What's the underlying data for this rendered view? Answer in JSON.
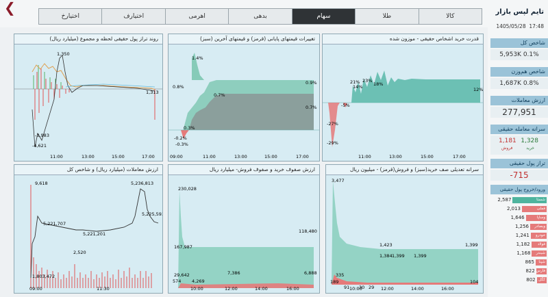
{
  "tabs": [
    "کالا",
    "طلا",
    "سهام",
    "بدهی",
    "اهرمی",
    "اختیارف",
    "اختیارخ"
  ],
  "active_tab": "سهام",
  "brand": {
    "name": "تایم لپس بازار",
    "date": "1405/05/28",
    "time": "17:48"
  },
  "sidebar": {
    "total_index_label": "شاخص کل",
    "total_index_value": "5,953K 0.1%",
    "eq_index_label": "شاخص هم‌وزن",
    "eq_index_value": "1,687K 0.8%",
    "trade_value_label": "ارزش معاملات",
    "trade_value": "277,951",
    "per_capita_label": "سرانه معامله حقیقی",
    "buy_value": "1,328",
    "buy_label": "خرید",
    "sell_value": "1,181",
    "sell_label": "فروش",
    "money_balance_label": "تراز پول حقیقی",
    "money_balance_value": "-715",
    "flow_label": "ورود/خروج پول حقیقی",
    "flows": [
      {
        "name": "شستا",
        "value": "2,587",
        "pos": true,
        "frac": 0.62
      },
      {
        "name": "فملی",
        "value": "2,013",
        "pos": false,
        "frac": 0.45
      },
      {
        "name": "وساپا",
        "value": "1,646",
        "pos": false,
        "frac": 0.38
      },
      {
        "name": "وبصادر",
        "value": "1,256",
        "pos": false,
        "frac": 0.3
      },
      {
        "name": "خودرو",
        "value": "1,241",
        "pos": false,
        "frac": 0.29
      },
      {
        "name": "فولاد",
        "value": "1,182",
        "pos": false,
        "frac": 0.28
      },
      {
        "name": "شبندر",
        "value": "1,168",
        "pos": false,
        "frac": 0.27
      },
      {
        "name": "شپنا",
        "value": "865",
        "pos": false,
        "frac": 0.2
      },
      {
        "name": "فارس",
        "value": "822",
        "pos": false,
        "frac": 0.19
      },
      {
        "name": "کگل",
        "value": "802",
        "pos": false,
        "frac": 0.18
      }
    ]
  },
  "panels": {
    "p1": {
      "title": "قدرت خرید اشخاص حقیقی - موزون شده",
      "labels": [
        "21%",
        "23%",
        "18%",
        "14%",
        "12%",
        "-5%",
        "-27%",
        "-29%"
      ],
      "xticks": [
        "11:00",
        "13:00",
        "15:00",
        "17:00"
      ]
    },
    "p2": {
      "title": "تغییرات قیمتهای پایانی (قرمز) و قیمتهای آخرین (سبز)",
      "labels": [
        "1.4%",
        "0.9%",
        "0.8%",
        "0.7%",
        "0.7%",
        "0.3%",
        "-0.2%",
        "-0.3%"
      ],
      "xticks": [
        "09:00",
        "11:00",
        "13:00",
        "15:00",
        "17:00"
      ]
    },
    "p3": {
      "title": "روند تراز پول حقیقی لحظه و مجموع (میلیارد ریال)",
      "labels": [
        "1,350",
        "-3,983",
        "-4,621",
        "1,313"
      ],
      "xticks": [
        "11:00",
        "13:00",
        "15:00",
        "17:00"
      ]
    },
    "p4": {
      "title": "سرانه تعدیلی صف خرید(سبز) و فروش(قرمز) - میلیون ریال",
      "labels": [
        "3,477",
        "1,423",
        "1,384",
        "1,399",
        "1,399",
        "1,399",
        "335",
        "189",
        "91",
        "30",
        "29",
        "104"
      ],
      "xticks": [
        "10:00",
        "12:00",
        "14:00",
        "16:00"
      ]
    },
    "p5": {
      "title": "ارزش صفوف خرید و صفوف فروش- میلیارد ریال",
      "labels": [
        "230,028",
        "167,987",
        "118,480",
        "29,642",
        "574",
        "4,269",
        "7,386",
        "6,888"
      ],
      "xticks": [
        "10:00",
        "12:00",
        "14:00",
        "16:00"
      ]
    },
    "p6": {
      "title": "ارزش معاملات (میلیارد ریال) و شاخص کل",
      "labels": [
        "9,618",
        "5,236,813",
        "5,225,593",
        "5,221,707",
        "5,221,201",
        "2,520",
        "1,803,472"
      ],
      "xticks": [
        "09:00",
        "11:30"
      ]
    }
  }
}
